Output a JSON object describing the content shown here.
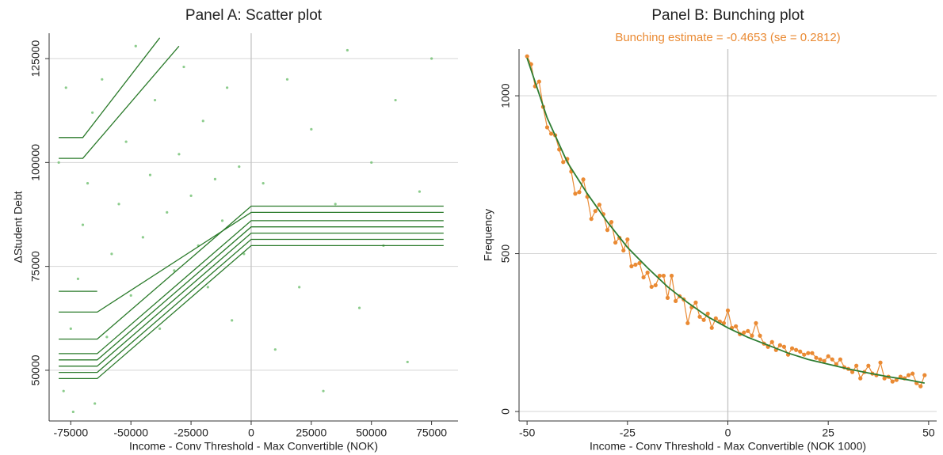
{
  "chart_data": [
    {
      "type": "scatter",
      "title": "Panel A: Scatter plot",
      "x_label": "Income - Conv Threshold - Max Convertible (NOK)",
      "y_label": "ΔStudent Debt",
      "xlim": [
        -84000,
        86000
      ],
      "ylim": [
        37800,
        131100
      ],
      "xticks": [
        -75000,
        -50000,
        -25000,
        0,
        25000,
        50000,
        75000
      ],
      "yticks": [
        50000,
        75000,
        100000,
        125000
      ],
      "grid": true,
      "xline": 0,
      "point_color": "#6fbf6f",
      "line_color": "#2a7a2a",
      "points": {
        "x": [
          -78000,
          -75000,
          -72000,
          -70000,
          -68000,
          -66000,
          -62000,
          -60000,
          -58000,
          -55000,
          -52000,
          -50000,
          -48000,
          -45000,
          -42000,
          -40000,
          -38000,
          -35000,
          -32000,
          -30000,
          -28000,
          -25000,
          -22000,
          -20000,
          -18000,
          -15000,
          -12000,
          -10000,
          -8000,
          -5000,
          -3000,
          5000,
          10000,
          15000,
          20000,
          25000,
          30000,
          35000,
          40000,
          45000,
          50000,
          55000,
          60000,
          65000,
          70000,
          75000,
          -80000,
          -77000,
          -74000,
          -65000
        ],
        "y": [
          45000,
          60000,
          72000,
          85000,
          95000,
          112000,
          120000,
          58000,
          78000,
          90000,
          105000,
          68000,
          128000,
          82000,
          97000,
          115000,
          60000,
          88000,
          74000,
          102000,
          123000,
          92000,
          80000,
          110000,
          70000,
          96000,
          86000,
          118000,
          62000,
          99000,
          78000,
          95000,
          55000,
          120000,
          70000,
          108000,
          45000,
          90000,
          127000,
          65000,
          100000,
          80000,
          115000,
          52000,
          93000,
          125000,
          100000,
          118000,
          40000,
          42000
        ]
      },
      "lines": [
        {
          "x": [
            -80000,
            -64000,
            0,
            80000
          ],
          "y": [
            48000,
            48000,
            80000,
            80000
          ]
        },
        {
          "x": [
            -80000,
            -64000,
            0,
            80000
          ],
          "y": [
            49500,
            49500,
            81500,
            81500
          ]
        },
        {
          "x": [
            -80000,
            -64000,
            0,
            80000
          ],
          "y": [
            51000,
            51000,
            83000,
            83000
          ]
        },
        {
          "x": [
            -80000,
            -64000,
            0,
            80000
          ],
          "y": [
            52500,
            52500,
            84500,
            84500
          ]
        },
        {
          "x": [
            -80000,
            -64000,
            0,
            80000
          ],
          "y": [
            54000,
            54000,
            86000,
            86000
          ]
        },
        {
          "x": [
            -80000,
            -64000,
            0,
            80000
          ],
          "y": [
            57500,
            57500,
            89500,
            89500
          ]
        },
        {
          "x": [
            -80000,
            -64000,
            0,
            80000
          ],
          "y": [
            64000,
            64000,
            88000,
            88000
          ]
        },
        {
          "x": [
            -80000,
            -64000
          ],
          "y": [
            69000,
            69000
          ]
        },
        {
          "x": [
            -80000,
            -70000,
            -38000
          ],
          "y": [
            106000,
            106000,
            130000
          ]
        },
        {
          "x": [
            -80000,
            -70000,
            -30000
          ],
          "y": [
            101000,
            101000,
            128000
          ]
        }
      ]
    },
    {
      "type": "line",
      "title": "Panel B: Bunching plot",
      "subtitle": "Bunching estimate = -0.4653 (se = 0.2812)",
      "subtitle_color": "#ea8a33",
      "x_label": "Income - Conv Threshold - Max Convertible (NOK 1000)",
      "y_label": "Frequency",
      "xlim": [
        -52,
        52
      ],
      "ylim": [
        -30,
        1148
      ],
      "xticks": [
        -50,
        -25,
        0,
        25,
        50
      ],
      "yticks": [
        0,
        500,
        1000
      ],
      "grid": true,
      "xline": 0,
      "series": [
        {
          "color": "#ea8a33",
          "markers": true,
          "x": [
            -50,
            -49,
            -48,
            -47,
            -46,
            -45,
            -44,
            -43,
            -42,
            -41,
            -40,
            -39,
            -38,
            -37,
            -36,
            -35,
            -34,
            -33,
            -32,
            -31,
            -30,
            -29,
            -28,
            -27,
            -26,
            -25,
            -24,
            -23,
            -22,
            -21,
            -20,
            -19,
            -18,
            -17,
            -16,
            -15,
            -14,
            -13,
            -12,
            -11,
            -10,
            -9,
            -8,
            -7,
            -6,
            -5,
            -4,
            -3,
            -2,
            -1,
            0,
            1,
            2,
            3,
            4,
            5,
            6,
            7,
            8,
            9,
            10,
            11,
            12,
            13,
            14,
            15,
            16,
            17,
            18,
            19,
            20,
            21,
            22,
            23,
            24,
            25,
            26,
            27,
            28,
            29,
            30,
            31,
            32,
            33,
            34,
            35,
            36,
            37,
            38,
            39,
            40,
            41,
            42,
            43,
            44,
            45,
            46,
            47,
            48,
            49
          ],
          "values": [
            1125,
            1100,
            1030,
            1045,
            965,
            900,
            880,
            875,
            830,
            790,
            800,
            760,
            690,
            695,
            735,
            680,
            610,
            635,
            655,
            625,
            575,
            600,
            535,
            550,
            510,
            545,
            460,
            465,
            470,
            425,
            440,
            395,
            400,
            430,
            430,
            360,
            430,
            350,
            365,
            355,
            280,
            330,
            345,
            300,
            290,
            310,
            265,
            295,
            285,
            280,
            320,
            265,
            270,
            245,
            250,
            255,
            240,
            280,
            240,
            215,
            205,
            220,
            195,
            210,
            205,
            180,
            200,
            195,
            190,
            180,
            185,
            185,
            170,
            165,
            160,
            175,
            165,
            150,
            165,
            140,
            135,
            125,
            145,
            105,
            125,
            145,
            120,
            115,
            155,
            105,
            110,
            95,
            100,
            110,
            105,
            115,
            120,
            90,
            80,
            115
          ]
        },
        {
          "color": "#2e7d32",
          "markers": false,
          "x": [
            -50,
            -45,
            -40,
            -35,
            -30,
            -25,
            -20,
            -15,
            -10,
            -5,
            0,
            5,
            10,
            15,
            20,
            25,
            30,
            35,
            40,
            45,
            49
          ],
          "values": [
            1120,
            930,
            790,
            690,
            600,
            520,
            455,
            395,
            345,
            300,
            265,
            235,
            210,
            185,
            165,
            150,
            135,
            122,
            110,
            100,
            90
          ]
        }
      ]
    }
  ]
}
